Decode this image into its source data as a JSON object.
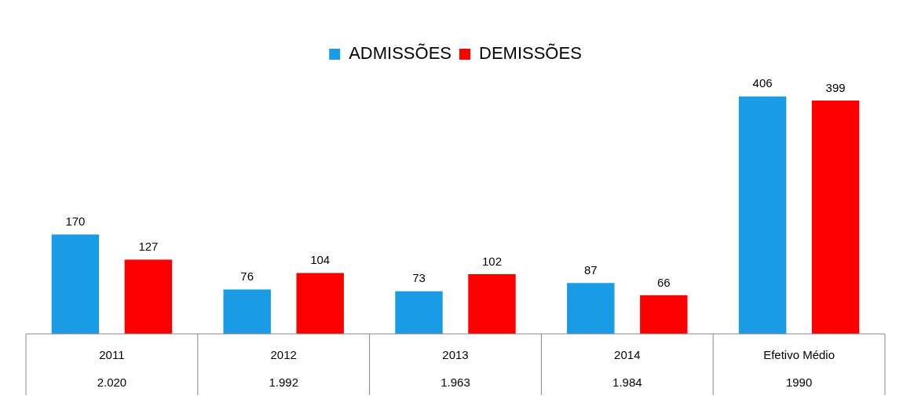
{
  "chart_data": {
    "type": "bar",
    "categories": [
      "2011",
      "2012",
      "2013",
      "2014",
      "Efetivo Médio"
    ],
    "series": [
      {
        "name": "ADMISSÕES",
        "color": "#1a9be6",
        "values": [
          170,
          76,
          73,
          87,
          406
        ]
      },
      {
        "name": "DEMISSÕES",
        "color": "#ff0000",
        "values": [
          127,
          104,
          102,
          66,
          399
        ]
      }
    ],
    "data_labels": true,
    "legend": "top",
    "annotations": [
      "2.020",
      "1.992",
      "1.963",
      "1.984",
      "1990"
    ]
  }
}
